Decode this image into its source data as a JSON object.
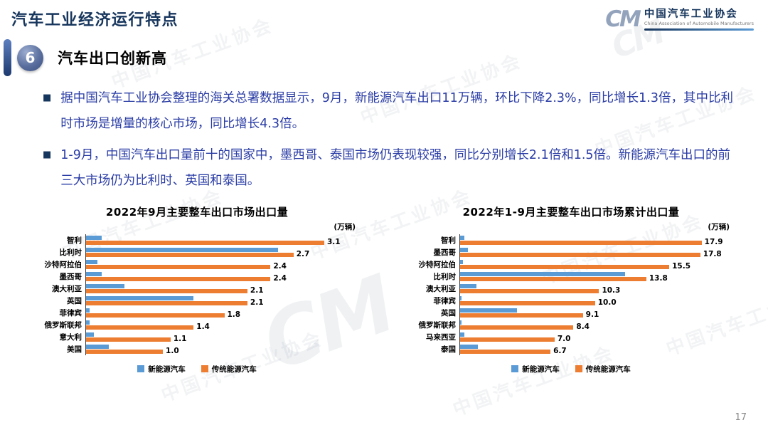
{
  "header": {
    "title": "汽车工业经济运行特点"
  },
  "logo": {
    "mark": "CM",
    "name_cn": "中国汽车工业协会",
    "name_en": "China Association of Automobile Manufacturers"
  },
  "section": {
    "number": "6",
    "title": "汽车出口创新高"
  },
  "bullet_marker": "■",
  "bullets": [
    "据中国汽车工业协会整理的海关总署数据显示，9月，新能源汽车出口11万辆，环比下降2.3%，同比增长1.3倍，其中比利时市场是增量的核心市场，同比增长4.3倍。",
    "1-9月，中国汽车出口量前十的国家中，墨西哥、泰国市场仍表现较强，同比分别增长2.1倍和1.5倍。新能源汽车出口的前三大市场仍为比利时、英国和泰国。"
  ],
  "watermark_text": "中国汽车工业协会",
  "footer": {
    "page_number": "17"
  },
  "colors": {
    "nev_blue": "#5B9BD5",
    "ice_orange": "#ED7D31",
    "navy": "#17365D",
    "body_blue": "#2A3CA5",
    "axis_gray": "#404040",
    "page_number_gray": "#8A8A8A"
  },
  "chart_data": [
    {
      "type": "bar",
      "orientation": "horizontal",
      "title": "2022年9月主要整车出口市场出口量",
      "unit_label": "(万辆)",
      "categories": [
        "智利",
        "比利时",
        "沙特阿拉伯",
        "墨西哥",
        "澳大利亚",
        "英国",
        "菲律宾",
        "俄罗斯联邦",
        "意大利",
        "美国"
      ],
      "series": [
        {
          "key": "nev",
          "name": "新能源汽车",
          "color": "#5B9BD5",
          "show_labels": false,
          "values": [
            0.2,
            2.5,
            0.15,
            0.2,
            0.5,
            1.4,
            0.05,
            0.05,
            0.1,
            0.3
          ]
        },
        {
          "key": "ice",
          "name": "传统能源汽车",
          "color": "#ED7D31",
          "show_labels": true,
          "values": [
            3.1,
            2.7,
            2.4,
            2.4,
            2.1,
            2.1,
            1.8,
            1.4,
            1.1,
            1.0
          ]
        }
      ],
      "xmax": 3.6,
      "legend_position": "bottom",
      "grid": false
    },
    {
      "type": "bar",
      "orientation": "horizontal",
      "title": "2022年1-9月主要整车出口市场累计出口量",
      "unit_label": "(万辆)",
      "categories": [
        "智利",
        "墨西哥",
        "沙特阿拉伯",
        "比利时",
        "澳大利亚",
        "菲律宾",
        "英国",
        "俄罗斯联邦",
        "马来西亚",
        "泰国"
      ],
      "series": [
        {
          "key": "nev",
          "name": "新能源汽车",
          "color": "#5B9BD5",
          "show_labels": false,
          "values": [
            0.3,
            0.6,
            0.2,
            12.2,
            1.2,
            0.1,
            4.2,
            0.1,
            0.3,
            1.3
          ]
        },
        {
          "key": "ice",
          "name": "传统能源汽车",
          "color": "#ED7D31",
          "show_labels": true,
          "values": [
            17.9,
            17.8,
            15.5,
            13.8,
            10.3,
            10.0,
            9.1,
            8.4,
            7.0,
            6.7
          ]
        }
      ],
      "xmax": 20.5,
      "legend_position": "bottom",
      "grid": false
    }
  ]
}
